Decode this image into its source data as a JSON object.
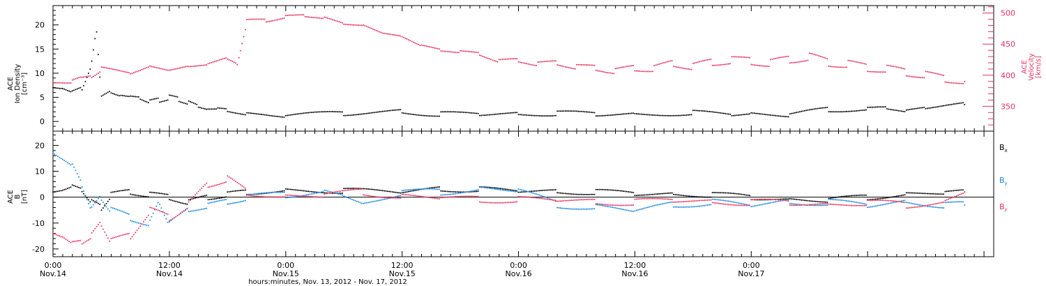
{
  "colors": {
    "density": "#000000",
    "velocity": "#e8325f",
    "bx": "#000000",
    "by": "#1a88e0",
    "bz": "#e8325f",
    "axis": "#000000"
  },
  "chart_data": [
    {
      "type": "scatter",
      "panel": "top",
      "ylabel": [
        "ACE",
        "Ion Density",
        "[cm⁻³]"
      ],
      "ylabel_right": [
        "ACE",
        "Velocity",
        "[km/s]"
      ],
      "ylim": [
        -2,
        24
      ],
      "ylim_right": [
        310,
        512
      ],
      "yticks": [
        0,
        5,
        10,
        15,
        20
      ],
      "yticks_right": [
        350,
        400,
        450,
        500
      ],
      "series": [
        {
          "name": "Ion Density",
          "axis": "left",
          "color": "#000000",
          "x": [
            0,
            1,
            2,
            3,
            4,
            4.5,
            5,
            6,
            7,
            8,
            9,
            10,
            11,
            12,
            13,
            14,
            15,
            16,
            17,
            18,
            20,
            24,
            30,
            36,
            40,
            44,
            48,
            52,
            56,
            60,
            66,
            70,
            72,
            76,
            80,
            84,
            86,
            88,
            90,
            94
          ],
          "y": [
            7,
            7,
            6,
            7,
            12,
            19,
            5,
            6,
            5.5,
            5,
            5,
            4,
            4.5,
            5,
            4.5,
            4,
            3,
            2.7,
            2.5,
            2.5,
            1.4,
            1.2,
            1.7,
            2,
            1.5,
            1.6,
            1.5,
            1.7,
            1.6,
            1.5,
            1.8,
            1.5,
            1.5,
            1.4,
            2.5,
            2.5,
            3,
            2,
            3,
            3.5
          ]
        },
        {
          "name": "Velocity",
          "axis": "right",
          "color": "#e8325f",
          "x": [
            0,
            2,
            3,
            4,
            5,
            8,
            10,
            12,
            14,
            16,
            18,
            19,
            20,
            22,
            24,
            26,
            28,
            30,
            32,
            34,
            36,
            38,
            40,
            42,
            44,
            46,
            48,
            50,
            52,
            54,
            56,
            58,
            60,
            62,
            64,
            66,
            68,
            70,
            72,
            74,
            76,
            78,
            80,
            82,
            84,
            86,
            88,
            90,
            92,
            94
          ],
          "y": [
            388,
            392,
            395,
            400,
            408,
            405,
            412,
            410,
            412,
            420,
            425,
            420,
            485,
            490,
            492,
            498,
            490,
            485,
            478,
            470,
            460,
            450,
            438,
            440,
            432,
            425,
            422,
            420,
            418,
            415,
            410,
            408,
            410,
            412,
            418,
            415,
            420,
            425,
            422,
            420,
            425,
            430,
            420,
            418,
            412,
            410,
            405,
            400,
            395,
            390
          ]
        }
      ]
    },
    {
      "type": "scatter",
      "panel": "bottom",
      "ylabel": [
        "ACE",
        "B",
        "[nT]"
      ],
      "ylim": [
        -23,
        25.5
      ],
      "yticks": [
        -20,
        -10,
        0,
        10,
        20
      ],
      "series": [
        {
          "name": "Bx",
          "label_main": "B",
          "label_sub": "x",
          "color": "#000000",
          "x": [
            0,
            1,
            2,
            3,
            4,
            5,
            6,
            8,
            10,
            12,
            14,
            16,
            18,
            20,
            24,
            30,
            36,
            40,
            44,
            48,
            52,
            56,
            60,
            64,
            68,
            72,
            76,
            80,
            84,
            88,
            92,
            94
          ],
          "y": [
            2,
            3,
            4,
            3,
            -2,
            -4,
            1,
            2,
            1,
            0,
            -2,
            0,
            1,
            2,
            2.5,
            2.5,
            2,
            3,
            3,
            2.5,
            2,
            2,
            1.5,
            1,
            1,
            0,
            -1,
            -1,
            0,
            1,
            2,
            2
          ]
        },
        {
          "name": "By",
          "label_main": "B",
          "label_sub": "y",
          "color": "#1a88e0",
          "x": [
            0,
            1,
            2,
            3,
            4,
            5,
            6,
            8,
            10,
            11,
            12,
            14,
            16,
            18,
            20,
            24,
            28,
            30,
            32,
            36,
            40,
            44,
            48,
            52,
            56,
            60,
            64,
            68,
            72,
            76,
            80,
            84,
            88,
            92,
            94
          ],
          "y": [
            17,
            15,
            12,
            5,
            -5,
            0,
            -5,
            -8,
            -10,
            -2,
            -10,
            -5,
            -3,
            -2,
            0,
            1,
            2,
            1,
            -3,
            2,
            2,
            3,
            3,
            -3,
            -4,
            -5,
            -3,
            -2,
            -3,
            -2,
            -2,
            -3,
            -2,
            -3,
            -3
          ]
        },
        {
          "name": "Bz",
          "label_main": "B",
          "label_sub": "z",
          "color": "#e8325f",
          "x": [
            0,
            1,
            2,
            3,
            4,
            5,
            6,
            8,
            10,
            12,
            14,
            16,
            18,
            20,
            24,
            28,
            32,
            36,
            40,
            44,
            48,
            52,
            56,
            60,
            64,
            68,
            72,
            76,
            80,
            84,
            88,
            92,
            94
          ],
          "y": [
            -14,
            -15,
            -18,
            -17,
            -15,
            -10,
            -17,
            -15,
            -5,
            -8,
            -3,
            5,
            7,
            2,
            0,
            1,
            2,
            0,
            0,
            -1,
            -1,
            -1,
            -2,
            -2,
            -1,
            -2,
            -2,
            -2,
            -3,
            -2,
            -3,
            -2,
            2
          ]
        }
      ]
    }
  ],
  "xaxis": {
    "range_hours": [
      0,
      97
    ],
    "ticks": [
      {
        "h": 0,
        "time": "0:00",
        "date": "Nov.14"
      },
      {
        "h": 12,
        "time": "12:00",
        "date": "Nov.14"
      },
      {
        "h": 24,
        "time": "0:00",
        "date": "Nov.15"
      },
      {
        "h": 36,
        "time": "12:00",
        "date": "Nov.15"
      },
      {
        "h": 48,
        "time": "0:00",
        "date": "Nov.16"
      },
      {
        "h": 60,
        "time": "12:00",
        "date": "Nov.16"
      },
      {
        "h": 72,
        "time": "0:00",
        "date": "Nov.17"
      }
    ],
    "xlabel": "hours:minutes, Nov. 13, 2012 - Nov. 17, 2012"
  }
}
